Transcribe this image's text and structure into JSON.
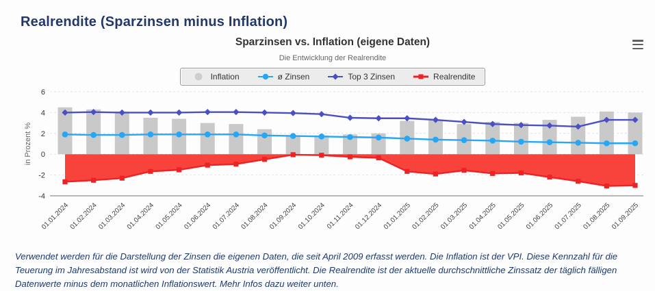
{
  "page": {
    "title": "Realrendite (Sparzinsen minus Inflation)"
  },
  "chart": {
    "title": "Sparzinsen vs. Inflation (eigene Daten)",
    "subtitle": "Die Entwicklung der Realrendite",
    "y_axis_title": "in Prozent %",
    "menu_icon": "hamburger-icon",
    "colors": {
      "inflation_bar": "#c9c9c9",
      "avg_line": "#25a7f5",
      "top3_line": "#4a4fc3",
      "real_line": "#ee2224",
      "real_fill": "#f8433c",
      "navy_text": "#21386b",
      "grid": "#e2e2e2",
      "axis_line": "#737373"
    },
    "legend": [
      {
        "label": "Inflation",
        "color": "#c9c9c9",
        "marker": "circle"
      },
      {
        "label": "ø Zinsen",
        "color": "#25a7f5",
        "marker": "line-circle"
      },
      {
        "label": "Top 3 Zinsen",
        "color": "#4a4fc3",
        "marker": "line-diamond"
      },
      {
        "label": "Realrendite",
        "color": "#ee2224",
        "marker": "line-square"
      }
    ]
  },
  "chart_data": {
    "type": "combo",
    "title": "Sparzinsen vs. Inflation (eigene Daten)",
    "subtitle": "Die Entwicklung der Realrendite",
    "ylabel": "in Prozent %",
    "ylim": [
      -4,
      6
    ],
    "yticks": [
      6,
      4,
      2,
      0,
      -2,
      -4
    ],
    "grid": true,
    "legend_position": "top",
    "categories": [
      "01.01.2024",
      "01.02.2024",
      "01.03.2024",
      "01.04.2024",
      "01.05.2024",
      "01.06.2024",
      "01.07.2024",
      "01.08.2024",
      "01.09.2024",
      "01.10.2024",
      "01.11.2024",
      "01.12.2024",
      "01.01.2025",
      "01.02.2025",
      "01.03.2025",
      "01.04.2025",
      "01.05.2025",
      "01.06.2025",
      "01.07.2025",
      "01.08.2025",
      "01.09.2025"
    ],
    "series": [
      {
        "name": "Inflation",
        "type": "column",
        "color": "#c9c9c9",
        "values": [
          4.5,
          4.3,
          4.1,
          3.5,
          3.4,
          3.0,
          2.9,
          2.4,
          1.8,
          1.8,
          1.9,
          2.0,
          3.2,
          3.3,
          2.9,
          3.1,
          3.0,
          3.3,
          3.6,
          4.1,
          4.0
        ]
      },
      {
        "name": "ø Zinsen",
        "type": "line",
        "color": "#25a7f5",
        "marker": "circle",
        "values": [
          1.9,
          1.85,
          1.85,
          1.9,
          1.9,
          1.9,
          1.9,
          1.8,
          1.75,
          1.7,
          1.65,
          1.6,
          1.5,
          1.4,
          1.35,
          1.3,
          1.2,
          1.15,
          1.1,
          1.05,
          1.05
        ]
      },
      {
        "name": "Top 3 Zinsen",
        "type": "line",
        "color": "#4a4fc3",
        "marker": "diamond",
        "values": [
          4.0,
          4.05,
          4.0,
          4.0,
          4.0,
          4.05,
          4.05,
          4.0,
          3.95,
          3.85,
          3.5,
          3.45,
          3.45,
          3.3,
          3.1,
          2.9,
          2.8,
          2.75,
          2.65,
          3.3,
          3.3
        ]
      },
      {
        "name": "Realrendite",
        "type": "area",
        "color": "#ee2224",
        "fill": "#f8433c",
        "marker": "square",
        "values": [
          -2.65,
          -2.5,
          -2.3,
          -1.65,
          -1.5,
          -1.05,
          -0.95,
          -0.5,
          -0.05,
          -0.1,
          -0.25,
          -0.35,
          -1.65,
          -1.9,
          -1.55,
          -1.85,
          -1.8,
          -2.2,
          -2.6,
          -3.05,
          -3.0
        ]
      }
    ]
  },
  "footer": {
    "text": "Verwendet werden für die Darstellung der Zinsen die eigenen Daten, die seit April 2009 erfasst werden. Die Inflation ist der VPI. Diese Kennzahl für die Teuerung im Jahresabstand ist wird von der Statistik Austria veröffentlicht. Die Realrendite ist der aktuelle durchschnittliche Zinssatz der täglich fälligen Datenwerte minus dem monatlichen Inflationswert. Mehr Infos dazu weiter unten."
  }
}
